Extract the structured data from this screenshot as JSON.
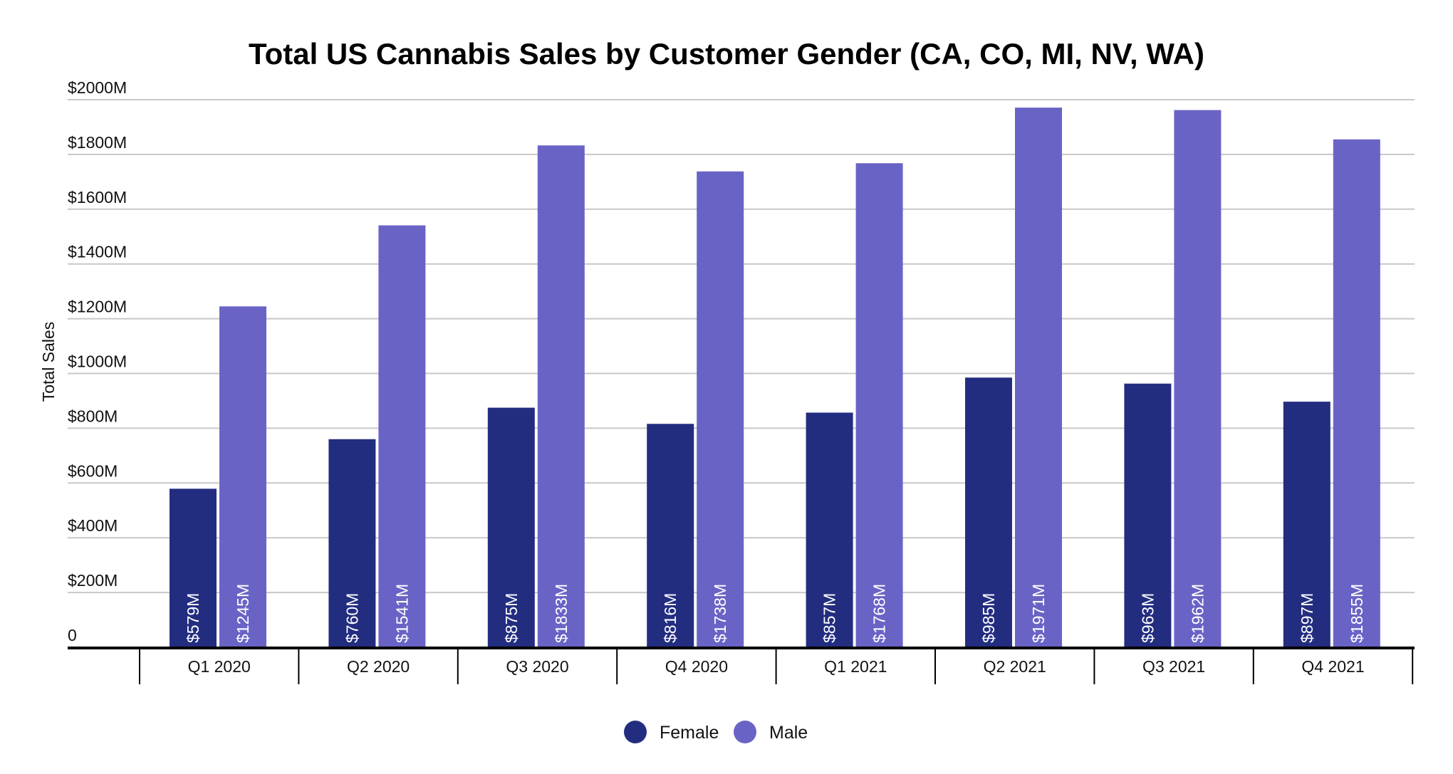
{
  "chart_data": {
    "type": "bar",
    "title": "Total US Cannabis Sales by Customer Gender (CA, CO, MI, NV, WA)",
    "xlabel": "",
    "ylabel": "Total Sales",
    "ylim": [
      0,
      2000
    ],
    "yticks": [
      0,
      200,
      400,
      600,
      800,
      1000,
      1200,
      1400,
      1600,
      1800,
      2000
    ],
    "ytick_labels": [
      "0",
      "$200M",
      "$400M",
      "$600M",
      "$800M",
      "$1000M",
      "$1200M",
      "$1400M",
      "$1600M",
      "$1800M",
      "$2000M"
    ],
    "grid": true,
    "legend_position": "bottom",
    "categories": [
      "Q1 2020",
      "Q2 2020",
      "Q3 2020",
      "Q4 2020",
      "Q1 2021",
      "Q2 2021",
      "Q3 2021",
      "Q4 2021"
    ],
    "series": [
      {
        "name": "Female",
        "color": "#232D80",
        "values": [
          579,
          760,
          875,
          816,
          857,
          985,
          963,
          897
        ],
        "labels": [
          "$579M",
          "$760M",
          "$875M",
          "$816M",
          "$857M",
          "$985M",
          "$963M",
          "$897M"
        ]
      },
      {
        "name": "Male",
        "color": "#6A63C6",
        "values": [
          1245,
          1541,
          1833,
          1738,
          1768,
          1971,
          1962,
          1855
        ],
        "labels": [
          "$1245M",
          "$1541M",
          "$1833M",
          "$1738M",
          "$1768M",
          "$1971M",
          "$1962M",
          "$1855M"
        ]
      }
    ]
  }
}
